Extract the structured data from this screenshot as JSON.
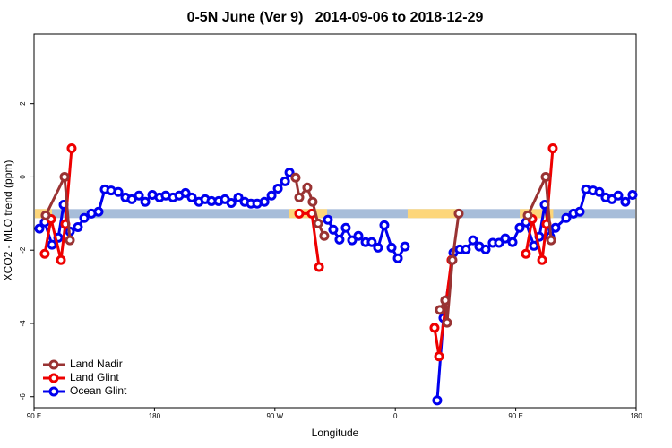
{
  "chart_data": {
    "type": "line",
    "title": "0-5N June (Ver 9)   2014-09-06 to 2018-12-29",
    "x_label": "Longitude",
    "y_label": "XCO2 - MLO trend (ppm)",
    "xlim": [
      90,
      540
    ],
    "ylim": [
      -6.3,
      3.9
    ],
    "xticks": [
      {
        "value": 90,
        "label": "90 E"
      },
      {
        "value": 180,
        "label": "180"
      },
      {
        "value": 270,
        "label": "90 W"
      },
      {
        "value": 360,
        "label": "0"
      },
      {
        "value": 450,
        "label": "90 E"
      },
      {
        "value": 540,
        "label": "180"
      }
    ],
    "yticks": [
      -6,
      -4,
      -2,
      0,
      2
    ],
    "legend": "bottom-left",
    "band": {
      "y": -1,
      "color": "#a7bdd9",
      "highlight_color": "#fdd67a",
      "highlights": [
        [
          90,
          103.4
        ],
        [
          280.2,
          309
        ],
        [
          369.2,
          406
        ],
        [
          453,
          478
        ]
      ]
    },
    "series": [
      {
        "name": "Land Nadir",
        "color": "#993333",
        "x": [
          98.7,
          112.8,
          116.8,
          null,
          285.5,
          288.2,
          294.2,
          298.2,
          302.3,
          306.9,
          null,
          393.3,
          397.3,
          398.7,
          402.7,
          407.4,
          null,
          459.0,
          472.4,
          476.4
        ],
        "values": [
          -1.05,
          0.0,
          -1.73,
          null,
          -0.02,
          -0.56,
          -0.29,
          -0.68,
          -1.27,
          -1.61,
          null,
          -3.63,
          -3.37,
          -3.98,
          -2.27,
          -1.0,
          null,
          -1.05,
          0.0,
          -1.73
        ]
      },
      {
        "name": "Land Glint",
        "color": "#ee0000",
        "x": [
          98.0,
          102.7,
          110.1,
          113.4,
          118.1,
          null,
          288.2,
          297.6,
          303.0,
          null,
          389.3,
          392.7,
          402.0,
          null,
          457.6,
          462.3,
          469.7,
          473.0,
          477.7
        ],
        "values": [
          -2.1,
          -1.15,
          -2.27,
          -1.29,
          0.78,
          null,
          -1.0,
          -1.0,
          -2.46,
          null,
          -4.12,
          -4.9,
          -2.27,
          null,
          -2.1,
          -1.15,
          -2.27,
          -1.29,
          0.78
        ]
      },
      {
        "name": "Ocean Glint",
        "color": "#0000ee",
        "x": [
          94,
          98,
          103.4,
          108.1,
          112.1,
          116.8,
          122.8,
          127.5,
          132.9,
          138.2,
          142.9,
          147.6,
          153,
          158.3,
          163,
          168.4,
          173.1,
          178.4,
          183.8,
          188.4,
          193.8,
          198.5,
          203.2,
          207.9,
          213.2,
          217.9,
          222.6,
          228,
          232.7,
          237.4,
          242.7,
          247.4,
          252.1,
          256.8,
          262.2,
          267.5,
          272.2,
          277.6,
          280.9,
          null,
          309.6,
          313.6,
          318.3,
          323,
          327.7,
          332.4,
          337.8,
          342.4,
          347.1,
          351.8,
          357.2,
          361.9,
          367.2,
          null,
          391.3,
          396,
          403.4,
          408.1,
          412.7,
          418.1,
          422.8,
          427.5,
          432.8,
          437.5,
          442.2,
          447.6,
          452.9,
          457.6,
          463.6,
          467.7,
          471.7,
          475.7,
          479.7,
          487.7,
          493.1,
          497.8,
          502.5,
          507.8,
          512.5,
          517.2,
          521.9,
          526.6,
          531.9,
          537.3
        ],
        "values": [
          -1.41,
          -1.24,
          -1.85,
          -1.66,
          -0.76,
          -1.49,
          -1.37,
          -1.12,
          -1.0,
          -0.95,
          -0.34,
          -0.37,
          -0.41,
          -0.56,
          -0.61,
          -0.51,
          -0.68,
          -0.49,
          -0.56,
          -0.51,
          -0.56,
          -0.51,
          -0.44,
          -0.56,
          -0.68,
          -0.61,
          -0.66,
          -0.66,
          -0.61,
          -0.71,
          -0.56,
          -0.68,
          -0.73,
          -0.73,
          -0.68,
          -0.51,
          -0.32,
          -0.12,
          0.12,
          null,
          -1.17,
          -1.44,
          -1.71,
          -1.39,
          -1.73,
          -1.61,
          -1.78,
          -1.78,
          -1.93,
          -1.32,
          -1.93,
          -2.22,
          -1.9,
          null,
          -6.1,
          -3.85,
          -2.07,
          -1.98,
          -1.98,
          -1.73,
          -1.9,
          -1.98,
          -1.8,
          -1.8,
          -1.68,
          -1.78,
          -1.39,
          -1.24,
          -1.88,
          -1.63,
          -0.76,
          -1.63,
          -1.39,
          -1.12,
          -1.0,
          -0.95,
          -0.34,
          -0.37,
          -0.41,
          -0.56,
          -0.61,
          -0.51,
          -0.68,
          -0.49
        ]
      }
    ]
  }
}
